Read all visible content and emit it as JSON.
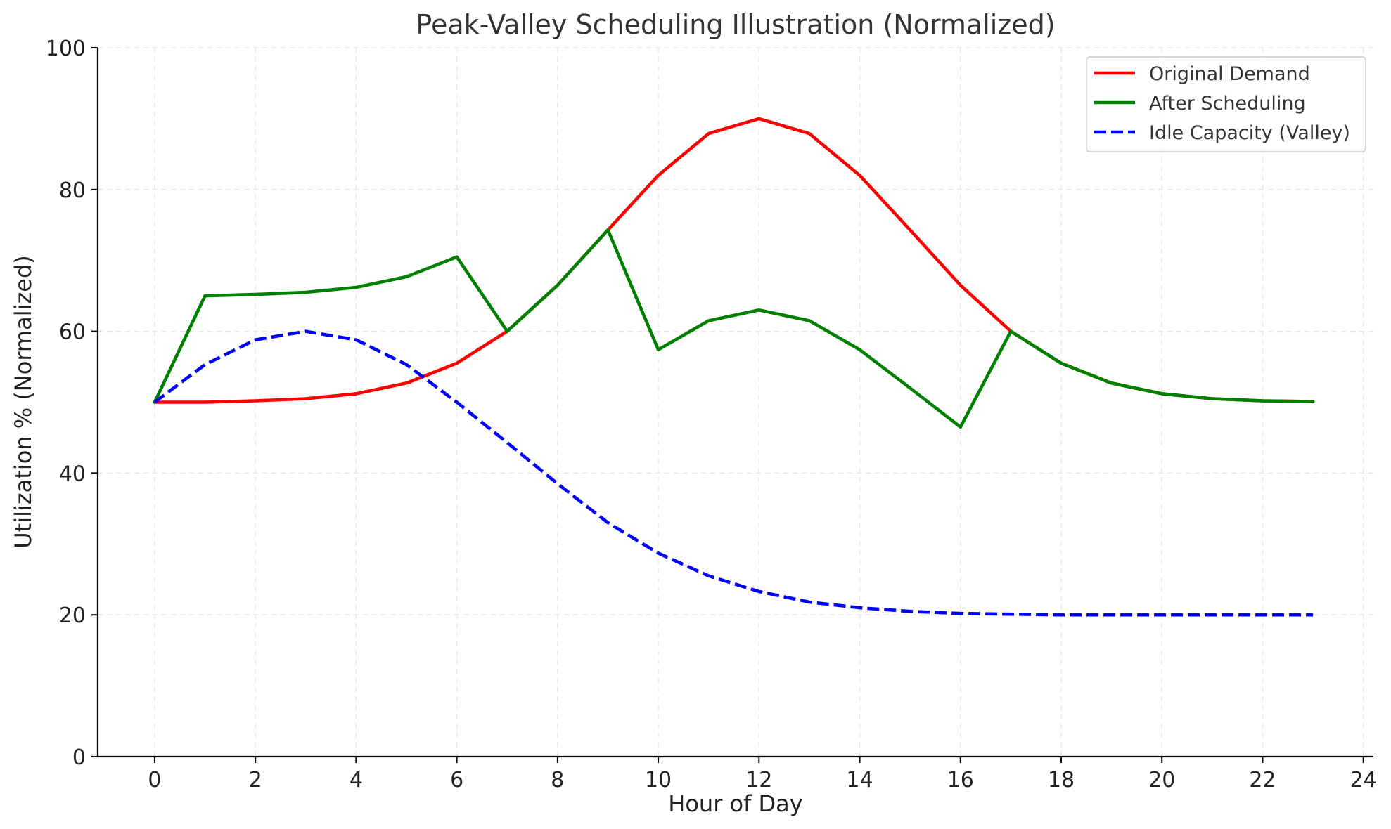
{
  "chart_data": {
    "type": "line",
    "title": "Peak-Valley Scheduling Illustration (Normalized)",
    "xlabel": "Hour of Day",
    "ylabel": "Utilization % (Normalized)",
    "xlim": [
      -1.13,
      24.2
    ],
    "ylim": [
      0,
      100
    ],
    "xticks": [
      0,
      2,
      4,
      6,
      8,
      10,
      12,
      14,
      16,
      18,
      20,
      22,
      24
    ],
    "yticks": [
      0,
      20,
      40,
      60,
      80,
      100
    ],
    "grid": true,
    "legend_position": "top-right",
    "x": [
      0,
      1,
      2,
      3,
      4,
      5,
      6,
      7,
      8,
      9,
      10,
      11,
      12,
      13,
      14,
      15,
      16,
      17,
      18,
      19,
      20,
      21,
      22,
      23
    ],
    "series": [
      {
        "name": "Original Demand",
        "color": "#ff0000",
        "style": "solid",
        "values": [
          50.0,
          50.0,
          50.2,
          50.5,
          51.2,
          52.7,
          55.5,
          60.0,
          66.5,
          74.3,
          82.0,
          87.9,
          90.0,
          87.9,
          82.0,
          74.3,
          66.5,
          60.0,
          55.5,
          52.7,
          51.2,
          50.5,
          50.2,
          50.1
        ]
      },
      {
        "name": "After Scheduling",
        "color": "#008000",
        "style": "solid",
        "values": [
          50.0,
          65.0,
          65.2,
          65.5,
          66.2,
          67.7,
          70.5,
          60.0,
          66.5,
          74.3,
          57.4,
          61.5,
          63.0,
          61.5,
          57.4,
          52.0,
          46.5,
          60.0,
          55.5,
          52.7,
          51.2,
          50.5,
          50.2,
          50.1
        ]
      },
      {
        "name": "Idle Capacity (Valley)",
        "color": "#0000ff",
        "style": "dashed",
        "values": [
          50.0,
          55.3,
          58.8,
          60.0,
          58.8,
          55.3,
          50.0,
          44.3,
          38.5,
          33.0,
          28.7,
          25.5,
          23.3,
          21.8,
          21.0,
          20.5,
          20.2,
          20.1,
          20.0,
          20.0,
          20.0,
          20.0,
          20.0,
          20.0
        ]
      }
    ]
  }
}
